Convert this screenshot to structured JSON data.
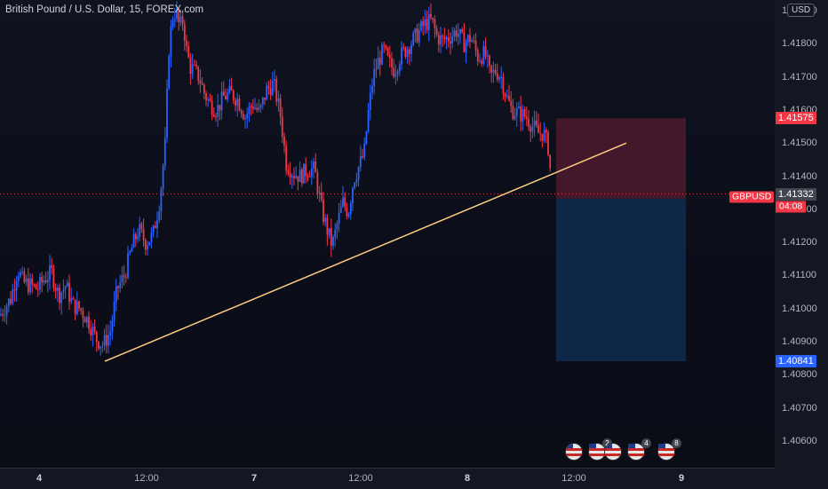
{
  "header": {
    "title": "British Pound / U.S. Dollar, 15, FOREX.com",
    "currency": "USD"
  },
  "price_axis": {
    "ticks": [
      "1.41900",
      "1.41800",
      "1.41700",
      "1.41600",
      "1.41500",
      "1.41400",
      "1.41300",
      "1.41200",
      "1.41100",
      "1.41000",
      "1.40900",
      "1.40800",
      "1.40700",
      "1.40600"
    ],
    "labels": {
      "target": "1.41575",
      "current": "1.41346",
      "entry": "1.41332",
      "stop": "1.40841",
      "symbol": "GBPUSD",
      "countdown": "04:08"
    }
  },
  "time_axis": {
    "ticks": [
      "4",
      "12:00",
      "7",
      "12:00",
      "8",
      "12:00",
      "9"
    ]
  },
  "events": [
    {
      "name": "us-flag-icon",
      "badge": ""
    },
    {
      "name": "us-flag-icon",
      "badge": "2"
    },
    {
      "name": "uk-flag-icon",
      "badge": ""
    },
    {
      "name": "us-flag-icon",
      "badge": "4"
    },
    {
      "name": "us-flag-icon",
      "badge": "8"
    }
  ],
  "colors": {
    "up": "#2962ff",
    "down": "#f23645",
    "trendline": "#ffcc80",
    "target_zone": "#4d1a2e",
    "stop_zone": "#0f2a4d"
  },
  "chart_data": {
    "type": "candlestick",
    "symbol": "GBPUSD",
    "interval": "15",
    "source": "FOREX.com",
    "price_range": [
      1.4052,
      1.4195
    ],
    "close_path": [
      [
        0,
        1.4098
      ],
      [
        12,
        1.4103
      ],
      [
        20,
        1.4112
      ],
      [
        26,
        1.4108
      ],
      [
        34,
        1.4107
      ],
      [
        42,
        1.4106
      ],
      [
        50,
        1.4109
      ],
      [
        58,
        1.4111
      ],
      [
        66,
        1.4104
      ],
      [
        74,
        1.4107
      ],
      [
        82,
        1.4101
      ],
      [
        90,
        1.41
      ],
      [
        100,
        1.4096
      ],
      [
        108,
        1.4091
      ],
      [
        116,
        1.4089
      ],
      [
        124,
        1.4093
      ],
      [
        132,
        1.4106
      ],
      [
        140,
        1.411
      ],
      [
        148,
        1.4118
      ],
      [
        156,
        1.4124
      ],
      [
        164,
        1.412
      ],
      [
        172,
        1.4122
      ],
      [
        180,
        1.4133
      ],
      [
        186,
        1.415
      ],
      [
        190,
        1.4178
      ],
      [
        194,
        1.4188
      ],
      [
        198,
        1.419
      ],
      [
        202,
        1.4185
      ],
      [
        206,
        1.4187
      ],
      [
        210,
        1.4178
      ],
      [
        214,
        1.4173
      ],
      [
        218,
        1.4172
      ],
      [
        224,
        1.417
      ],
      [
        230,
        1.4165
      ],
      [
        236,
        1.4162
      ],
      [
        244,
        1.416
      ],
      [
        252,
        1.4164
      ],
      [
        260,
        1.4165
      ],
      [
        268,
        1.4163
      ],
      [
        276,
        1.4158
      ],
      [
        284,
        1.4162
      ],
      [
        292,
        1.4159
      ],
      [
        300,
        1.4166
      ],
      [
        308,
        1.4168
      ],
      [
        316,
        1.4158
      ],
      [
        322,
        1.4144
      ],
      [
        330,
        1.4141
      ],
      [
        338,
        1.414
      ],
      [
        346,
        1.4142
      ],
      [
        354,
        1.4142
      ],
      [
        362,
        1.413
      ],
      [
        368,
        1.4124
      ],
      [
        374,
        1.4119
      ],
      [
        380,
        1.4126
      ],
      [
        386,
        1.4132
      ],
      [
        392,
        1.4129
      ],
      [
        398,
        1.4139
      ],
      [
        404,
        1.4143
      ],
      [
        410,
        1.4147
      ],
      [
        414,
        1.4158
      ],
      [
        420,
        1.417
      ],
      [
        426,
        1.4175
      ],
      [
        432,
        1.4178
      ],
      [
        438,
        1.4174
      ],
      [
        444,
        1.4172
      ],
      [
        450,
        1.4176
      ],
      [
        456,
        1.4178
      ],
      [
        462,
        1.418
      ],
      [
        470,
        1.4183
      ],
      [
        478,
        1.4186
      ],
      [
        486,
        1.4187
      ],
      [
        492,
        1.4182
      ],
      [
        498,
        1.4181
      ],
      [
        506,
        1.4182
      ],
      [
        514,
        1.4184
      ],
      [
        522,
        1.418
      ],
      [
        530,
        1.4182
      ],
      [
        538,
        1.4176
      ],
      [
        546,
        1.4177
      ],
      [
        552,
        1.417
      ],
      [
        558,
        1.4172
      ],
      [
        564,
        1.417
      ],
      [
        570,
        1.4164
      ],
      [
        576,
        1.416
      ],
      [
        584,
        1.4159
      ],
      [
        592,
        1.4158
      ],
      [
        600,
        1.4155
      ],
      [
        606,
        1.4153
      ],
      [
        612,
        1.4153
      ],
      [
        618,
        1.4148
      ],
      [
        621,
        1.4134
      ]
    ],
    "trendline": {
      "from": [
        118,
        1.40841
      ],
      "to": [
        705,
        1.415
      ]
    },
    "position": {
      "target": 1.41575,
      "entry": 1.41332,
      "stop": 1.40841,
      "x_range": [
        626,
        772
      ]
    },
    "current_price": 1.41346
  }
}
